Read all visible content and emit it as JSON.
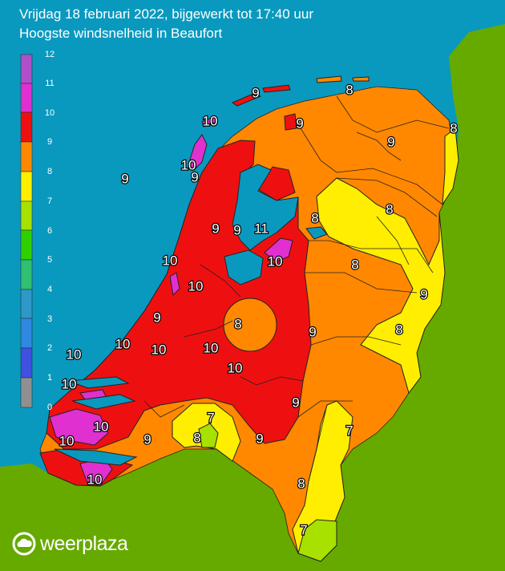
{
  "title": {
    "line1": "Vrijdag 18 februari 2022, bijgewerkt tot 17:40 uur",
    "line2": "Hoogste windsnelheid in Beaufort"
  },
  "brand": {
    "name": "weerplaza",
    "icon": "cloud-logo-icon"
  },
  "legend": {
    "ticks": [
      "12",
      "11",
      "10",
      "9",
      "8",
      "7",
      "6",
      "5",
      "4",
      "3",
      "2",
      "1",
      "0"
    ],
    "colors": [
      "#b050c8",
      "#e030d0",
      "#ee1010",
      "#ff8800",
      "#ffee00",
      "#a8e000",
      "#30d000",
      "#30c070",
      "#3098c8",
      "#3088e0",
      "#4050e0",
      "#6030e0",
      "#909090"
    ]
  },
  "colors": {
    "sea": "#0999bf",
    "land_abroad": "#66aa00",
    "bft_10": "#e030d0",
    "bft_9": "#ee1010",
    "bft_8": "#ff8800",
    "bft_7": "#ffee00",
    "bft_6": "#a8e000"
  },
  "labels": {
    "l01": "9",
    "l02": "8",
    "l03": "10",
    "l04": "9",
    "l05": "8",
    "l06": "9",
    "l07": "10",
    "l08": "9",
    "l09": "9",
    "l10": "8",
    "l11": "8",
    "l12": "9",
    "l13": "9",
    "l14": "11",
    "l15": "10",
    "l16": "10",
    "l17": "8",
    "l18": "10",
    "l19": "9",
    "l20": "8",
    "l21": "9",
    "l22": "8",
    "l23": "10",
    "l24": "10",
    "l25": "10",
    "l26": "10",
    "l27": "10",
    "l28": "9",
    "l29": "7",
    "l30": "7",
    "l31": "10",
    "l32": "9",
    "l33": "9",
    "l34": "8",
    "l35": "10",
    "l36": "7"
  }
}
